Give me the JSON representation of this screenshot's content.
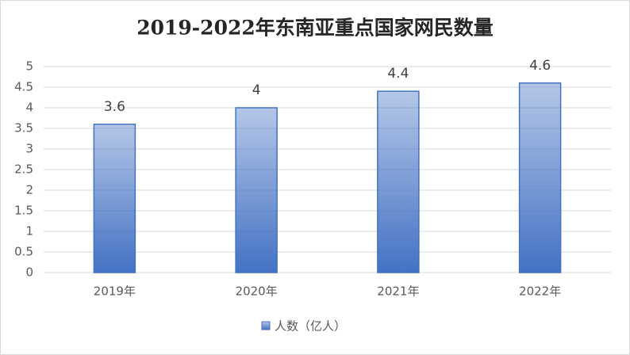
{
  "chart_data": {
    "type": "bar",
    "title": "2019-2022年东南亚重点国家网民数量",
    "categories": [
      "2019年",
      "2020年",
      "2021年",
      "2022年"
    ],
    "series": [
      {
        "name": "人数（亿人）",
        "color": "#4472c4",
        "values": [
          3.6,
          4,
          4.4,
          4.6
        ]
      }
    ],
    "ylim": [
      0,
      5
    ],
    "yticks": [
      0,
      0.5,
      1,
      1.5,
      2,
      2.5,
      3,
      3.5,
      4,
      4.5,
      5
    ],
    "grid": true,
    "legend": "bottom"
  }
}
